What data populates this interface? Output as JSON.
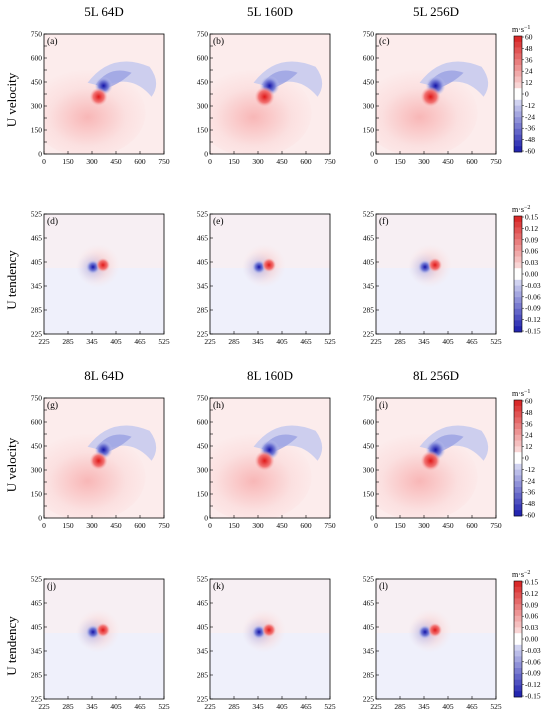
{
  "figure": {
    "column_titles_top": [
      "5L 64D",
      "5L 160D",
      "5L 256D"
    ],
    "column_titles_bottom": [
      "8L 64D",
      "8L 160D",
      "8L 256D"
    ],
    "row_labels": [
      "U velocity",
      "U tendency",
      "U velocity",
      "U tendency"
    ]
  },
  "chart_data": [
    {
      "type": "heatmap",
      "panels": [
        "(a)",
        "(b)",
        "(c)",
        "(g)",
        "(h)",
        "(i)"
      ],
      "variable": "U velocity",
      "xlim": [
        0,
        750
      ],
      "ylim": [
        0,
        750
      ],
      "xticks": [
        "0",
        "150",
        "300",
        "450",
        "600",
        "750"
      ],
      "yticks": [
        "0",
        "75",
        "150",
        "225",
        "300",
        "375",
        "450",
        "525",
        "600",
        "675",
        "750"
      ],
      "ytick_labels_shown": [
        "0",
        "150",
        "300",
        "450",
        "600",
        "750"
      ],
      "colorbar": {
        "unit": "m·s",
        "unit_exp": "−1",
        "ticks": [
          "60",
          "48",
          "36",
          "24",
          "12",
          "0",
          "-12",
          "-24",
          "-36",
          "-48",
          "-60"
        ],
        "range": [
          -60,
          60
        ],
        "colors": {
          "positive": "#d7191c",
          "negative": "#1a1aa0",
          "zero": "#ffffff"
        }
      },
      "vortex_center": [
        360,
        395
      ]
    },
    {
      "type": "heatmap",
      "panels": [
        "(d)",
        "(e)",
        "(f)",
        "(j)",
        "(k)",
        "(l)"
      ],
      "variable": "U tendency",
      "xlim": [
        225,
        525
      ],
      "ylim": [
        225,
        525
      ],
      "xticks": [
        "225",
        "285",
        "345",
        "405",
        "465",
        "525"
      ],
      "yticks": [
        "225",
        "285",
        "345",
        "405",
        "465",
        "525"
      ],
      "colorbar": {
        "unit": "m·s",
        "unit_exp": "−2",
        "ticks": [
          "0.15",
          "0.12",
          "0.09",
          "0.06",
          "0.03",
          "0.00",
          "-0.03",
          "-0.06",
          "-0.09",
          "-0.12",
          "-0.15"
        ],
        "range": [
          -0.15,
          0.15
        ],
        "colors": {
          "positive": "#d7191c",
          "negative": "#1a1aa0",
          "zero": "#ffffff"
        }
      },
      "vortex_center": [
        360,
        395
      ]
    }
  ]
}
